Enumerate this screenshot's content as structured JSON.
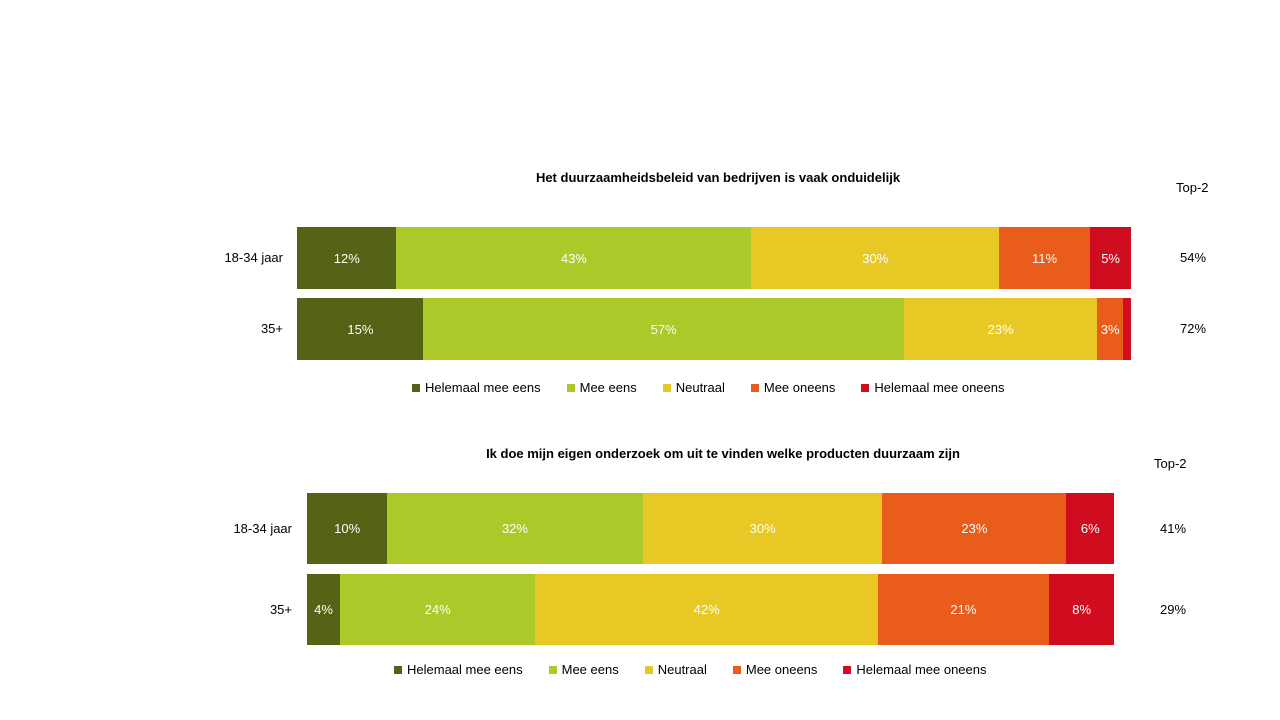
{
  "chart_data": [
    {
      "type": "bar",
      "stacked": true,
      "orientation": "horizontal",
      "title": "Het duurzaamheidsbeleid van bedrijven is vaak onduidelijk",
      "top2_header": "Top-2",
      "series_names": [
        "Helemaal mee eens",
        "Mee eens",
        "Neutraal",
        "Mee oneens",
        "Helemaal mee oneens"
      ],
      "colors": [
        "#556317",
        "#acc92a",
        "#e8c825",
        "#e95c1c",
        "#cf0d1e"
      ],
      "rows": [
        {
          "category": "18-34 jaar",
          "values": [
            12,
            43,
            30,
            11,
            5
          ],
          "labels": [
            "12%",
            "43%",
            "30%",
            "11%",
            "5%"
          ],
          "top2": "54%"
        },
        {
          "category": "35+",
          "values": [
            15,
            57,
            23,
            3,
            1
          ],
          "labels": [
            "15%",
            "57%",
            "23%",
            "3%",
            null
          ],
          "top2": "72%"
        }
      ],
      "legend": "bottom"
    },
    {
      "type": "bar",
      "stacked": true,
      "orientation": "horizontal",
      "title": "Ik doe mijn eigen onderzoek om uit te vinden welke producten duurzaam zijn",
      "top2_header": "Top-2",
      "series_names": [
        "Helemaal mee eens",
        "Mee eens",
        "Neutraal",
        "Mee oneens",
        "Helemaal mee oneens"
      ],
      "colors": [
        "#556317",
        "#acc92a",
        "#e8c825",
        "#e95c1c",
        "#cf0d1e"
      ],
      "rows": [
        {
          "category": "18-34 jaar",
          "values": [
            10,
            32,
            30,
            23,
            6
          ],
          "labels": [
            "10%",
            "32%",
            "30%",
            "23%",
            "6%"
          ],
          "top2": "41%"
        },
        {
          "category": "35+",
          "values": [
            4,
            24,
            42,
            21,
            8
          ],
          "labels": [
            "4%",
            "24%",
            "42%",
            "21%",
            "8%"
          ],
          "top2": "29%"
        }
      ],
      "legend": "bottom"
    }
  ]
}
